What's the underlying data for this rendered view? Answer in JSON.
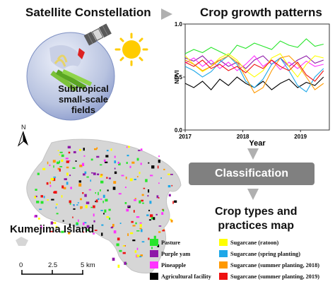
{
  "titles": {
    "satellite": "Satellite Constellation",
    "growth": "Crop growth patterns",
    "crop_map_line1": "Crop types and",
    "crop_map_line2": "practices map",
    "island": "Kumejima Island"
  },
  "globe_label": {
    "line1": "Subtropical",
    "line2": "small-scale",
    "line3": "fields"
  },
  "classification_label": "Classification",
  "north_label": "N",
  "scale_bar": {
    "ticks": [
      "0",
      "2.5",
      "5"
    ],
    "unit": "km"
  },
  "legend": {
    "items": [
      {
        "label": "Pasture",
        "color": "#27e52b"
      },
      {
        "label": "Purple yam",
        "color": "#8e19a8"
      },
      {
        "label": "Pineapple",
        "color": "#ff33ff"
      },
      {
        "label": "Agricultural facility",
        "color": "#000000"
      },
      {
        "label": "Sugarcane (ratoon)",
        "color": "#ffff00"
      },
      {
        "label": "Sugarcane (spring planting)",
        "color": "#1ea8e8"
      },
      {
        "label": "Sugarcane (summer planting, 2018)",
        "color": "#ff9900"
      },
      {
        "label": "Sugarcane (summer planting, 2019)",
        "color": "#ee1111"
      }
    ]
  },
  "chart_data": {
    "type": "line",
    "ylabel": "NDVI",
    "xlabel": "Year",
    "ylim": [
      0.0,
      1.0
    ],
    "yticks": [
      "0.0",
      "0.5",
      "1.0"
    ],
    "xlim": [
      2017,
      2019.5
    ],
    "xticks": [
      "2017",
      "2018",
      "2019"
    ],
    "series": [
      {
        "color": "#27e52b",
        "x": [
          2017.0,
          2017.15,
          2017.3,
          2017.45,
          2017.6,
          2017.75,
          2017.9,
          2018.05,
          2018.2,
          2018.35,
          2018.5,
          2018.65,
          2018.8,
          2018.95,
          2019.1,
          2019.25,
          2019.4
        ],
        "y": [
          0.72,
          0.76,
          0.73,
          0.78,
          0.74,
          0.7,
          0.8,
          0.77,
          0.82,
          0.79,
          0.76,
          0.84,
          0.8,
          0.78,
          0.86,
          0.79,
          0.81
        ]
      },
      {
        "color": "#8e19a8",
        "x": [
          2017.0,
          2017.15,
          2017.3,
          2017.45,
          2017.6,
          2017.75,
          2017.9,
          2018.05,
          2018.2,
          2018.35,
          2018.5,
          2018.65,
          2018.8,
          2018.95,
          2019.1,
          2019.25,
          2019.4
        ],
        "y": [
          0.68,
          0.65,
          0.7,
          0.62,
          0.66,
          0.6,
          0.64,
          0.58,
          0.66,
          0.7,
          0.62,
          0.68,
          0.6,
          0.66,
          0.7,
          0.63,
          0.66
        ]
      },
      {
        "color": "#ff33ff",
        "x": [
          2017.0,
          2017.15,
          2017.3,
          2017.45,
          2017.6,
          2017.75,
          2017.9,
          2018.05,
          2018.2,
          2018.35,
          2018.5,
          2018.65,
          2018.8,
          2018.95,
          2019.1,
          2019.25,
          2019.4
        ],
        "y": [
          0.63,
          0.68,
          0.6,
          0.66,
          0.58,
          0.64,
          0.56,
          0.62,
          0.7,
          0.6,
          0.66,
          0.57,
          0.64,
          0.58,
          0.65,
          0.6,
          0.62
        ]
      },
      {
        "color": "#000000",
        "x": [
          2017.0,
          2017.15,
          2017.3,
          2017.45,
          2017.6,
          2017.75,
          2017.9,
          2018.05,
          2018.2,
          2018.35,
          2018.5,
          2018.65,
          2018.8,
          2018.95,
          2019.1,
          2019.25,
          2019.4
        ],
        "y": [
          0.44,
          0.4,
          0.46,
          0.38,
          0.48,
          0.42,
          0.5,
          0.44,
          0.4,
          0.46,
          0.38,
          0.44,
          0.48,
          0.4,
          0.45,
          0.42,
          0.5
        ]
      },
      {
        "color": "#ffff00",
        "x": [
          2017.0,
          2017.15,
          2017.3,
          2017.45,
          2017.6,
          2017.75,
          2017.9,
          2018.05,
          2018.2,
          2018.35,
          2018.5,
          2018.65,
          2018.8,
          2018.95,
          2019.1,
          2019.25,
          2019.4
        ],
        "y": [
          0.7,
          0.62,
          0.55,
          0.6,
          0.68,
          0.72,
          0.66,
          0.56,
          0.5,
          0.56,
          0.68,
          0.72,
          0.6,
          0.5,
          0.62,
          0.7,
          0.68
        ]
      },
      {
        "color": "#1ea8e8",
        "x": [
          2017.0,
          2017.15,
          2017.3,
          2017.45,
          2017.6,
          2017.75,
          2017.9,
          2018.05,
          2018.2,
          2018.35,
          2018.5,
          2018.65,
          2018.8,
          2018.95,
          2019.1,
          2019.25,
          2019.4
        ],
        "y": [
          0.6,
          0.56,
          0.5,
          0.55,
          0.64,
          0.7,
          0.62,
          0.46,
          0.4,
          0.48,
          0.62,
          0.68,
          0.56,
          0.42,
          0.36,
          0.5,
          0.58
        ]
      },
      {
        "color": "#ff9900",
        "x": [
          2017.0,
          2017.15,
          2017.3,
          2017.45,
          2017.6,
          2017.75,
          2017.9,
          2018.05,
          2018.2,
          2018.35,
          2018.5,
          2018.65,
          2018.8,
          2018.95,
          2019.1,
          2019.25,
          2019.4
        ],
        "y": [
          0.66,
          0.62,
          0.56,
          0.6,
          0.66,
          0.7,
          0.64,
          0.5,
          0.35,
          0.4,
          0.56,
          0.68,
          0.7,
          0.62,
          0.5,
          0.38,
          0.44
        ]
      },
      {
        "color": "#ee1111",
        "x": [
          2017.0,
          2017.15,
          2017.3,
          2017.45,
          2017.6,
          2017.75,
          2017.9,
          2018.05,
          2018.2,
          2018.35,
          2018.5,
          2018.65,
          2018.8,
          2018.95,
          2019.1,
          2019.25,
          2019.4
        ],
        "y": [
          0.64,
          0.6,
          0.66,
          0.58,
          0.62,
          0.56,
          0.6,
          0.54,
          0.62,
          0.58,
          0.66,
          0.6,
          0.56,
          0.64,
          0.52,
          0.46,
          0.56
        ]
      }
    ]
  }
}
